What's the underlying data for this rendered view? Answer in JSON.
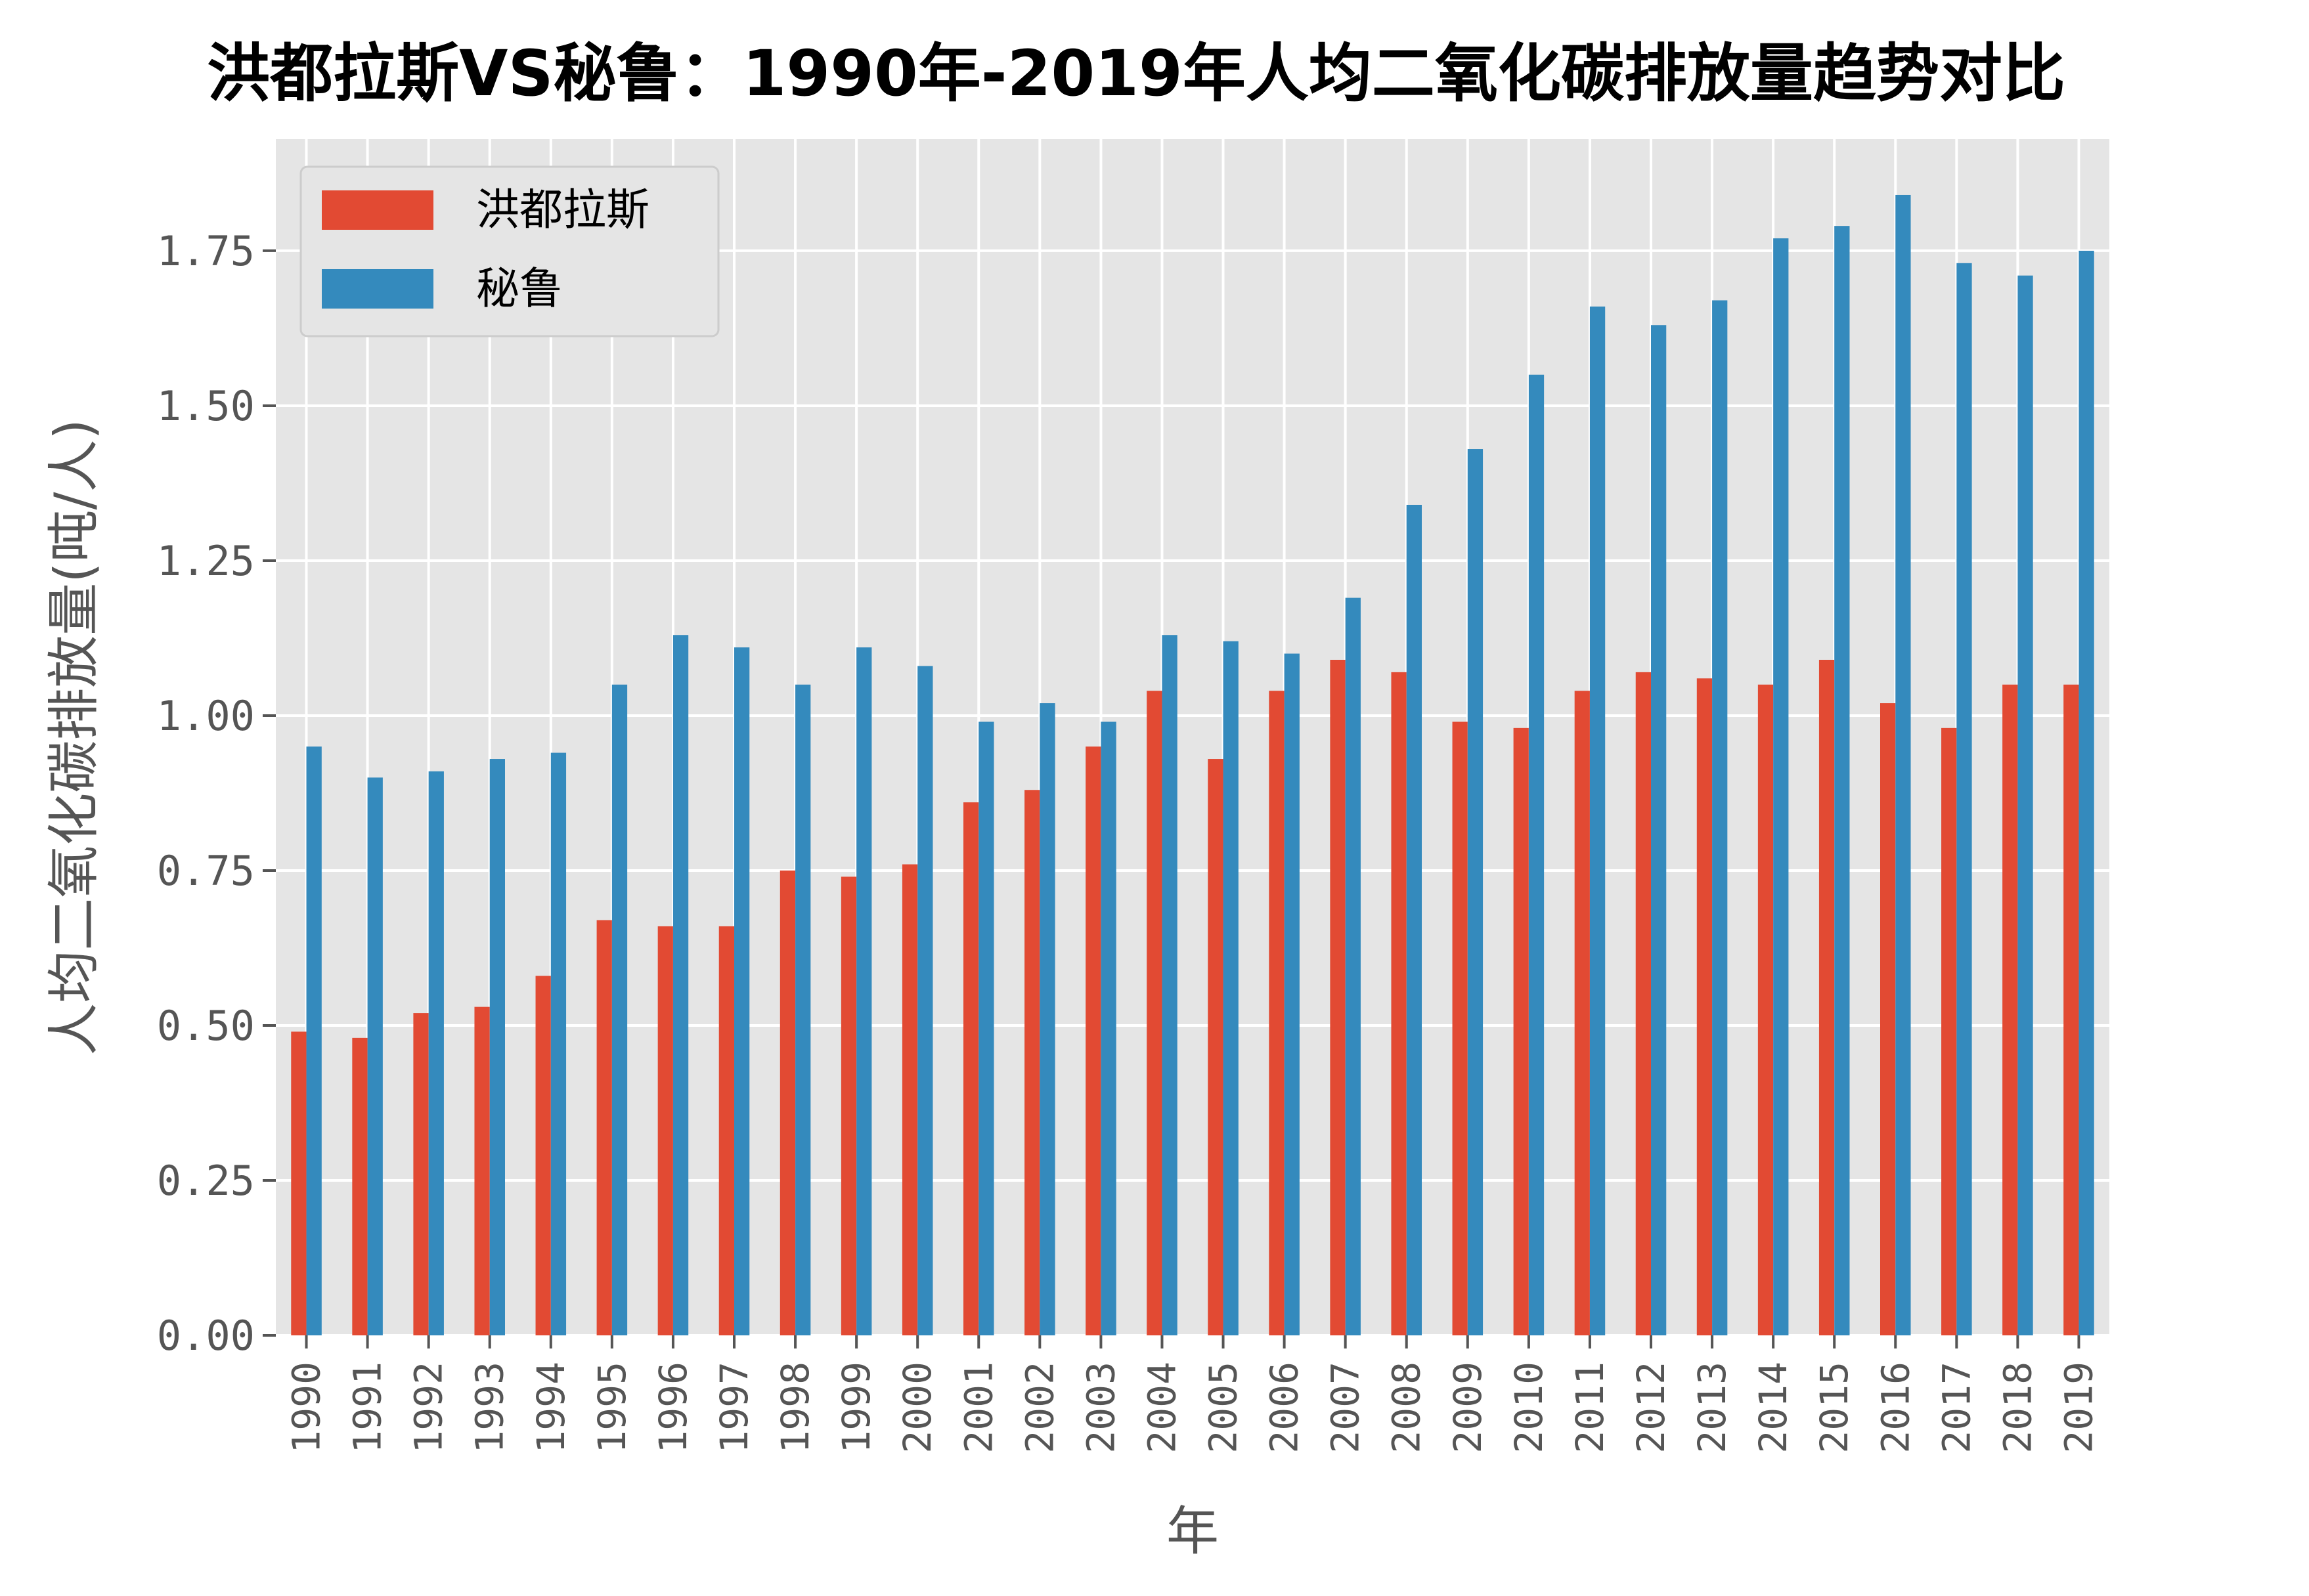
{
  "chart_data": {
    "type": "bar",
    "title": "洪都拉斯VS秘鲁：1990年-2019年人均二氧化碳排放量趋势对比",
    "xlabel": "年",
    "ylabel": "人均二氧化碳排放量(吨/人)",
    "ylim": [
      0,
      1.93
    ],
    "yticks": [
      "0.00",
      "0.25",
      "0.50",
      "0.75",
      "1.00",
      "1.25",
      "1.50",
      "1.75"
    ],
    "grid": true,
    "legend_position": "top-left",
    "categories": [
      "1990",
      "1991",
      "1992",
      "1993",
      "1994",
      "1995",
      "1996",
      "1997",
      "1998",
      "1999",
      "2000",
      "2001",
      "2002",
      "2003",
      "2004",
      "2005",
      "2006",
      "2007",
      "2008",
      "2009",
      "2010",
      "2011",
      "2012",
      "2013",
      "2014",
      "2015",
      "2016",
      "2017",
      "2018",
      "2019"
    ],
    "series": [
      {
        "name": "洪都拉斯",
        "color": "#E24A33",
        "values": [
          0.49,
          0.48,
          0.52,
          0.53,
          0.58,
          0.67,
          0.66,
          0.66,
          0.75,
          0.74,
          0.76,
          0.86,
          0.88,
          0.95,
          1.04,
          0.93,
          1.04,
          1.09,
          1.07,
          0.99,
          0.98,
          1.04,
          1.07,
          1.06,
          1.05,
          1.09,
          1.02,
          0.98,
          1.05,
          1.05
        ]
      },
      {
        "name": "秘鲁",
        "color": "#348ABD",
        "values": [
          0.95,
          0.9,
          0.91,
          0.93,
          0.94,
          1.05,
          1.13,
          1.11,
          1.05,
          1.11,
          1.08,
          0.99,
          1.02,
          0.99,
          1.13,
          1.12,
          1.1,
          1.19,
          1.34,
          1.43,
          1.55,
          1.66,
          1.63,
          1.67,
          1.77,
          1.79,
          1.84,
          1.73,
          1.71,
          1.75
        ]
      }
    ]
  },
  "colors": {
    "plot_background": "#E5E5E5",
    "grid": "#FFFFFF",
    "tick_text": "#555555"
  }
}
